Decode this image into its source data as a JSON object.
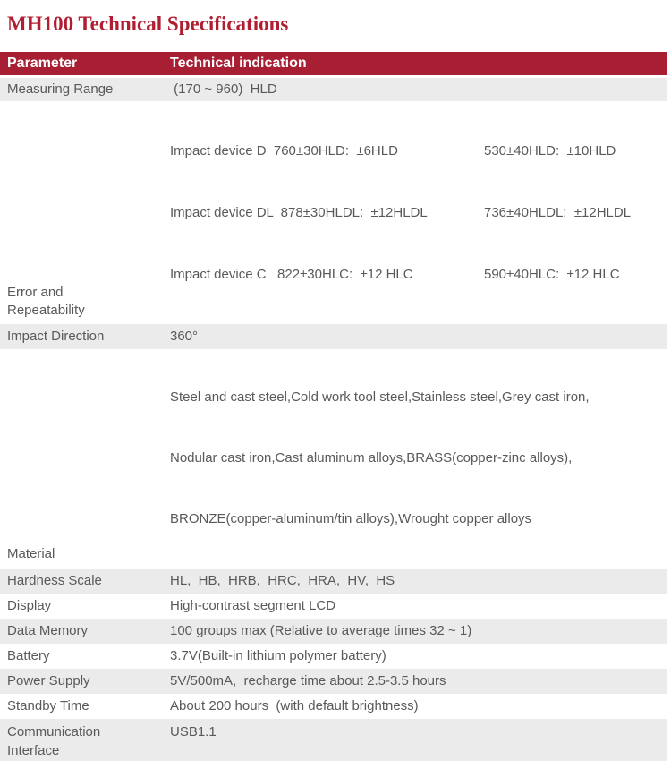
{
  "page": {
    "title": "MH100 Technical Specifications"
  },
  "colors": {
    "title_color": "#B01E31",
    "header_bg": "#A81F33",
    "header_text": "#FFFFFF",
    "row_alt_bg": "#EBEBEB",
    "body_text": "#58595B"
  },
  "table": {
    "headers": [
      "Parameter",
      "Technical indication"
    ],
    "rows": [
      {
        "parameter": "Measuring Range",
        "value": " (170 ~ 960)  HLD"
      },
      {
        "parameter": "Error and\nRepeatability",
        "lines": [
          {
            "left": "Impact device D  760±30HLD:  ±6HLD",
            "right": "530±40HLD:  ±10HLD"
          },
          {
            "left": "Impact device DL  878±30HLDL:  ±12HLDL",
            "right": "736±40HLDL:  ±12HLDL"
          },
          {
            "left": "Impact device C   822±30HLC:  ±12 HLC",
            "right": "590±40HLC:  ±12 HLC"
          }
        ]
      },
      {
        "parameter": "Impact Direction",
        "value": "360°"
      },
      {
        "parameter": "Material",
        "lines": [
          "Steel and cast steel,Cold work tool steel,Stainless steel,Grey cast iron,",
          "Nodular cast iron,Cast aluminum alloys,BRASS(copper-zinc alloys),",
          "BRONZE(copper-aluminum/tin alloys),Wrought copper alloys"
        ]
      },
      {
        "parameter": "Hardness Scale",
        "value": "HL,  HB,  HRB,  HRC,  HRA,  HV,  HS"
      },
      {
        "parameter": "Display",
        "value": "High-contrast segment LCD"
      },
      {
        "parameter": "Data Memory",
        "value": "100 groups max (Relative to average times 32 ~ 1)"
      },
      {
        "parameter": "Battery",
        "value": "3.7V(Built-in lithium polymer battery)"
      },
      {
        "parameter": "Power Supply",
        "value": "5V/500mA,  recharge time about 2.5-3.5 hours"
      },
      {
        "parameter": "Standby Time",
        "value": "About 200 hours  (with default brightness)"
      },
      {
        "parameter": "Communication\nInterface",
        "value": "USB1.1"
      }
    ]
  }
}
